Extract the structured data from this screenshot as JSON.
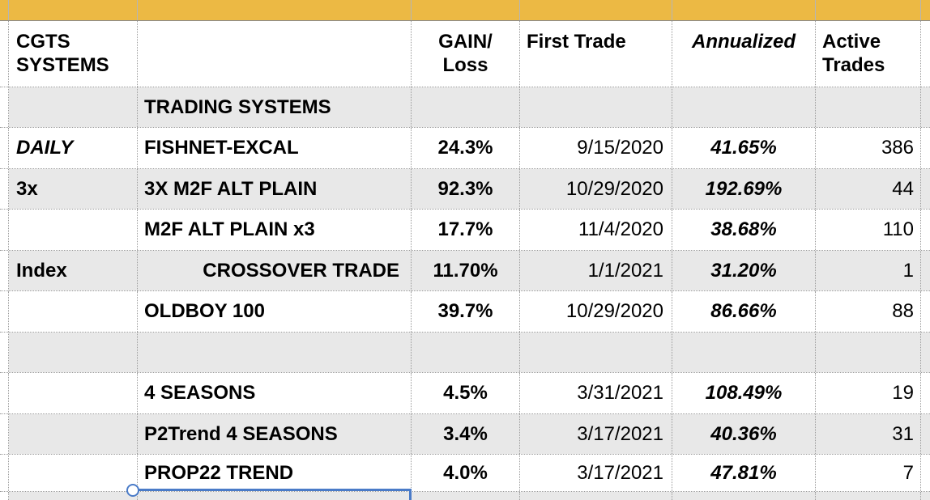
{
  "colors": {
    "highlight_band": "#ECB944",
    "band_divider": "#B5B5B5",
    "band_bottom_border": "#8B8B8B",
    "row_stripe": "#E8E8E8",
    "gridline": "#9a9a9a",
    "selection_blue": "#4A7BC8",
    "text": "#000000"
  },
  "header": {
    "title_line1": "CGTS",
    "title_line2": "SYSTEMS",
    "gain_line1": "GAIN/",
    "gain_line2": "Loss",
    "first_trade": "First Trade",
    "annualized": "Annualized",
    "active_line1": "Active",
    "active_line2": "Trades"
  },
  "rows": [
    {
      "label": "",
      "name": "TRADING SYSTEMS",
      "gain": "",
      "first_trade": "",
      "annualized": "",
      "active_trades": ""
    },
    {
      "label": "DAILY",
      "name": "FISHNET-EXCAL",
      "gain": "24.3%",
      "first_trade": "9/15/2020",
      "annualized": "41.65%",
      "active_trades": "386"
    },
    {
      "label": "3x",
      "name": "3X M2F ALT PLAIN",
      "gain": "92.3%",
      "first_trade": "10/29/2020",
      "annualized": "192.69%",
      "active_trades": "44"
    },
    {
      "label": "",
      "name": "M2F ALT PLAIN x3",
      "gain": "17.7%",
      "first_trade": "11/4/2020",
      "annualized": "38.68%",
      "active_trades": "110"
    },
    {
      "label": "Index",
      "name": "CROSSOVER TRADE",
      "gain": "11.70%",
      "first_trade": "1/1/2021",
      "annualized": "31.20%",
      "active_trades": "1"
    },
    {
      "label": "",
      "name": "OLDBOY 100",
      "gain": "39.7%",
      "first_trade": "10/29/2020",
      "annualized": "86.66%",
      "active_trades": "88"
    },
    {
      "label": "",
      "name": "",
      "gain": "",
      "first_trade": "",
      "annualized": "",
      "active_trades": ""
    },
    {
      "label": "",
      "name": "4 SEASONS",
      "gain": "4.5%",
      "first_trade": "3/31/2021",
      "annualized": "108.49%",
      "active_trades": "19"
    },
    {
      "label": "",
      "name": "P2Trend 4 SEASONS",
      "gain": "3.4%",
      "first_trade": "3/17/2021",
      "annualized": "40.36%",
      "active_trades": "31"
    },
    {
      "label": "",
      "name": "PROP22 TREND",
      "gain": "4.0%",
      "first_trade": "3/17/2021",
      "annualized": "47.81%",
      "active_trades": "7"
    }
  ]
}
